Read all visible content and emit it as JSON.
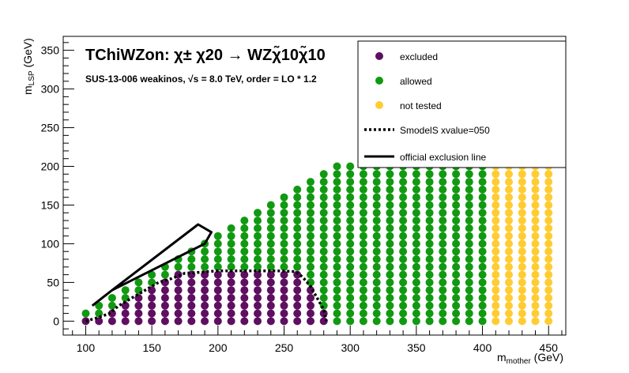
{
  "chart_data": {
    "type": "scatter",
    "title_main": "TChiWZon:  χ± χ20  → WZχ̃10χ̃10",
    "title_sub": "SUS-13-006  weakinos,  √s =  8.0 TeV, order =  LO * 1.2",
    "xlabel": "m",
    "xlabel_sub": "mother",
    "xlabel_unit": " (GeV)",
    "ylabel": "m",
    "ylabel_sub": "LSP",
    "ylabel_unit": " (GeV)",
    "xlim": [
      83,
      463
    ],
    "ylim": [
      -18,
      368
    ],
    "x_ticks": [
      "100",
      "150",
      "200",
      "250",
      "300",
      "350",
      "400",
      "450"
    ],
    "y_ticks": [
      "0",
      "50",
      "100",
      "150",
      "200",
      "250",
      "300",
      "350"
    ],
    "colors": {
      "excluded": "#5e0f61",
      "allowed": "#119911",
      "not_tested": "#ffcc33"
    },
    "legend": {
      "position": "top-right",
      "entries": [
        {
          "key": "excluded",
          "label": "excluded",
          "style": "marker"
        },
        {
          "key": "allowed",
          "label": "allowed",
          "style": "marker"
        },
        {
          "key": "not_tested",
          "label": "not tested",
          "style": "marker"
        },
        {
          "key": "smodels",
          "label": "SmodelS xvalue=050",
          "style": "dotted-line"
        },
        {
          "key": "official",
          "label": " official exclusion line",
          "style": "solid-line"
        }
      ]
    },
    "grid": {
      "x_start": 100,
      "x_step": 10,
      "x_end": 450,
      "y_step": 10
    },
    "official_exclusion_line": [
      [
        105,
        20
      ],
      [
        120,
        40
      ],
      [
        185,
        125
      ],
      [
        195,
        115
      ],
      [
        190,
        100
      ],
      [
        120,
        40
      ]
    ],
    "smodels_line": [
      [
        100,
        0
      ],
      [
        110,
        5
      ],
      [
        118,
        10
      ],
      [
        125,
        20
      ],
      [
        135,
        30
      ],
      [
        145,
        40
      ],
      [
        155,
        50
      ],
      [
        165,
        55
      ],
      [
        175,
        62
      ],
      [
        185,
        63
      ],
      [
        200,
        65
      ],
      [
        215,
        65
      ],
      [
        230,
        65
      ],
      [
        245,
        65
      ],
      [
        258,
        64
      ],
      [
        262,
        60
      ],
      [
        265,
        55
      ],
      [
        270,
        45
      ],
      [
        275,
        30
      ],
      [
        280,
        15
      ],
      [
        282,
        0
      ]
    ]
  }
}
